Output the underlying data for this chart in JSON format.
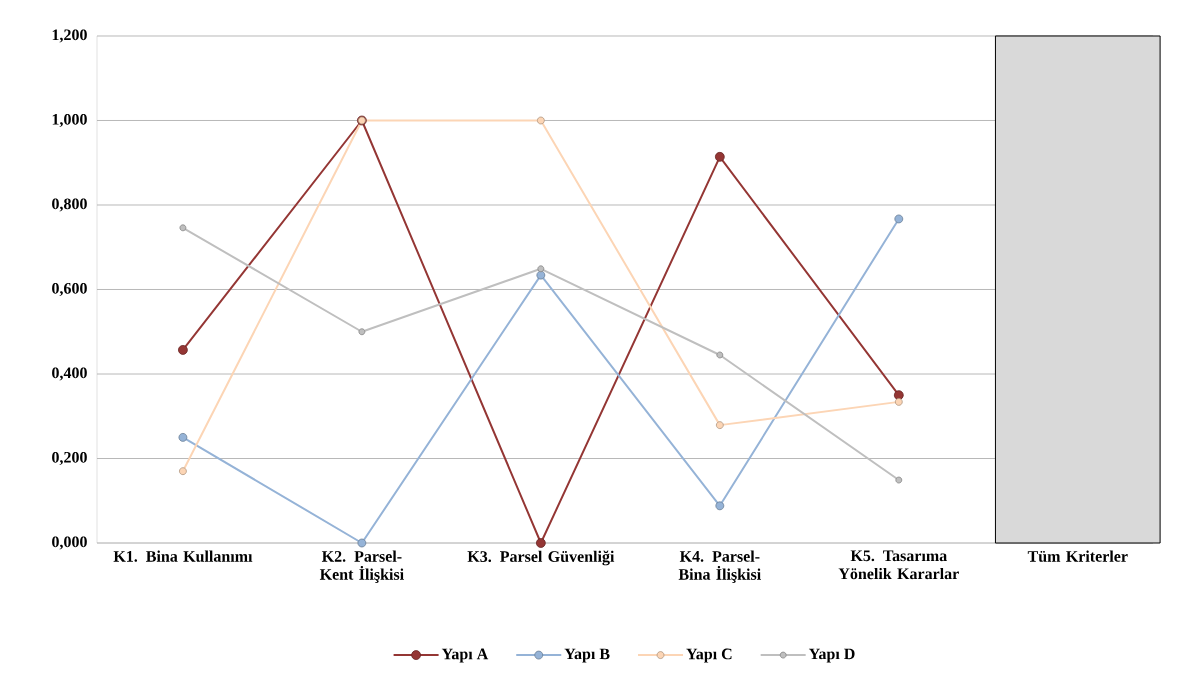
{
  "chart_data": {
    "type": "line",
    "categories": [
      "K1. Bina Kullanımı",
      "K2. Parsel-Kent İlişkisi",
      "K3. Parsel Güvenliği",
      "K4. Parsel-Bina İlişkisi",
      "K5. Tasarıma Yönelik Kararlar",
      "Tüm Kriterler"
    ],
    "series": [
      {
        "name": "Yapı A",
        "color": "#943634",
        "values": [
          0.457,
          1.0,
          0.0,
          0.914,
          0.35,
          null
        ]
      },
      {
        "name": "Yapı B",
        "color": "#95b3d7",
        "values": [
          0.25,
          0.0,
          0.634,
          0.088,
          0.767,
          null
        ]
      },
      {
        "name": "Yapı C",
        "color": "#fcd5b5",
        "values": [
          0.17,
          1.0,
          1.0,
          0.279,
          0.334,
          null
        ]
      },
      {
        "name": "Yapı D",
        "color": "#bfbfbf",
        "values": [
          0.746,
          0.5,
          0.649,
          0.445,
          0.149,
          null
        ]
      },
      {
        "type": "bar",
        "color": "#d9d9d9",
        "values": [
          null,
          null,
          null,
          null,
          null,
          1.2
        ]
      }
    ],
    "ylim": [
      0,
      1.2
    ],
    "yticks": [
      {
        "value": 0,
        "label": "0,000"
      },
      {
        "value": 0.2,
        "label": "0,200"
      },
      {
        "value": 0.4,
        "label": "0,400"
      },
      {
        "value": 0.6,
        "label": "0,600"
      },
      {
        "value": 0.8,
        "label": "0,800"
      },
      {
        "value": 1.0,
        "label": "1,000"
      },
      {
        "value": 1.2,
        "label": "1,200"
      }
    ],
    "grid": "y",
    "legend": "bottom",
    "marker": "circle",
    "line_style": "solid"
  }
}
